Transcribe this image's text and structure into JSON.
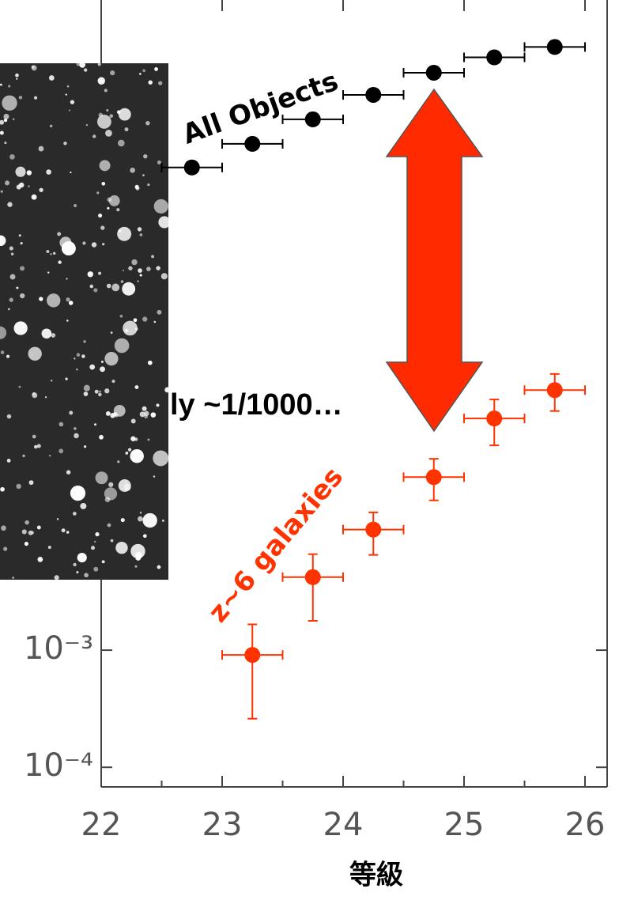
{
  "chart_data": {
    "type": "scatter",
    "log_y": true,
    "xlabel": "等級",
    "xlim": [
      22,
      26.2
    ],
    "xticks": [
      22,
      23,
      24,
      25,
      26
    ],
    "ylim": [
      6.8e-05,
      355
    ],
    "yticks": [
      {
        "value": 0.001,
        "label": "10⁻³"
      },
      {
        "value": 0.0001,
        "label": "10⁻⁴"
      }
    ],
    "annotations": [
      "All Objects",
      "ly ~1/1000…",
      "z~6 galaxies"
    ],
    "series": [
      {
        "color": "#000000",
        "x": [
          22.75,
          23.25,
          23.75,
          24.25,
          24.75,
          25.25,
          25.75
        ],
        "values": [
          13.2,
          21,
          34,
          55,
          85,
          115,
          141
        ],
        "xerr": 0.25
      },
      {
        "color": "#ff3300",
        "x": [
          23.25,
          23.75,
          24.25,
          24.75,
          25.25,
          25.75
        ],
        "values": [
          0.00091,
          0.0042,
          0.0107,
          0.03,
          0.095,
          0.166
        ],
        "xerr": 0.25,
        "ylow": [
          0.00026,
          0.00178,
          0.0065,
          0.019,
          0.056,
          0.11
        ],
        "yhigh": [
          0.00166,
          0.0066,
          0.015,
          0.043,
          0.138,
          0.228
        ]
      }
    ]
  }
}
